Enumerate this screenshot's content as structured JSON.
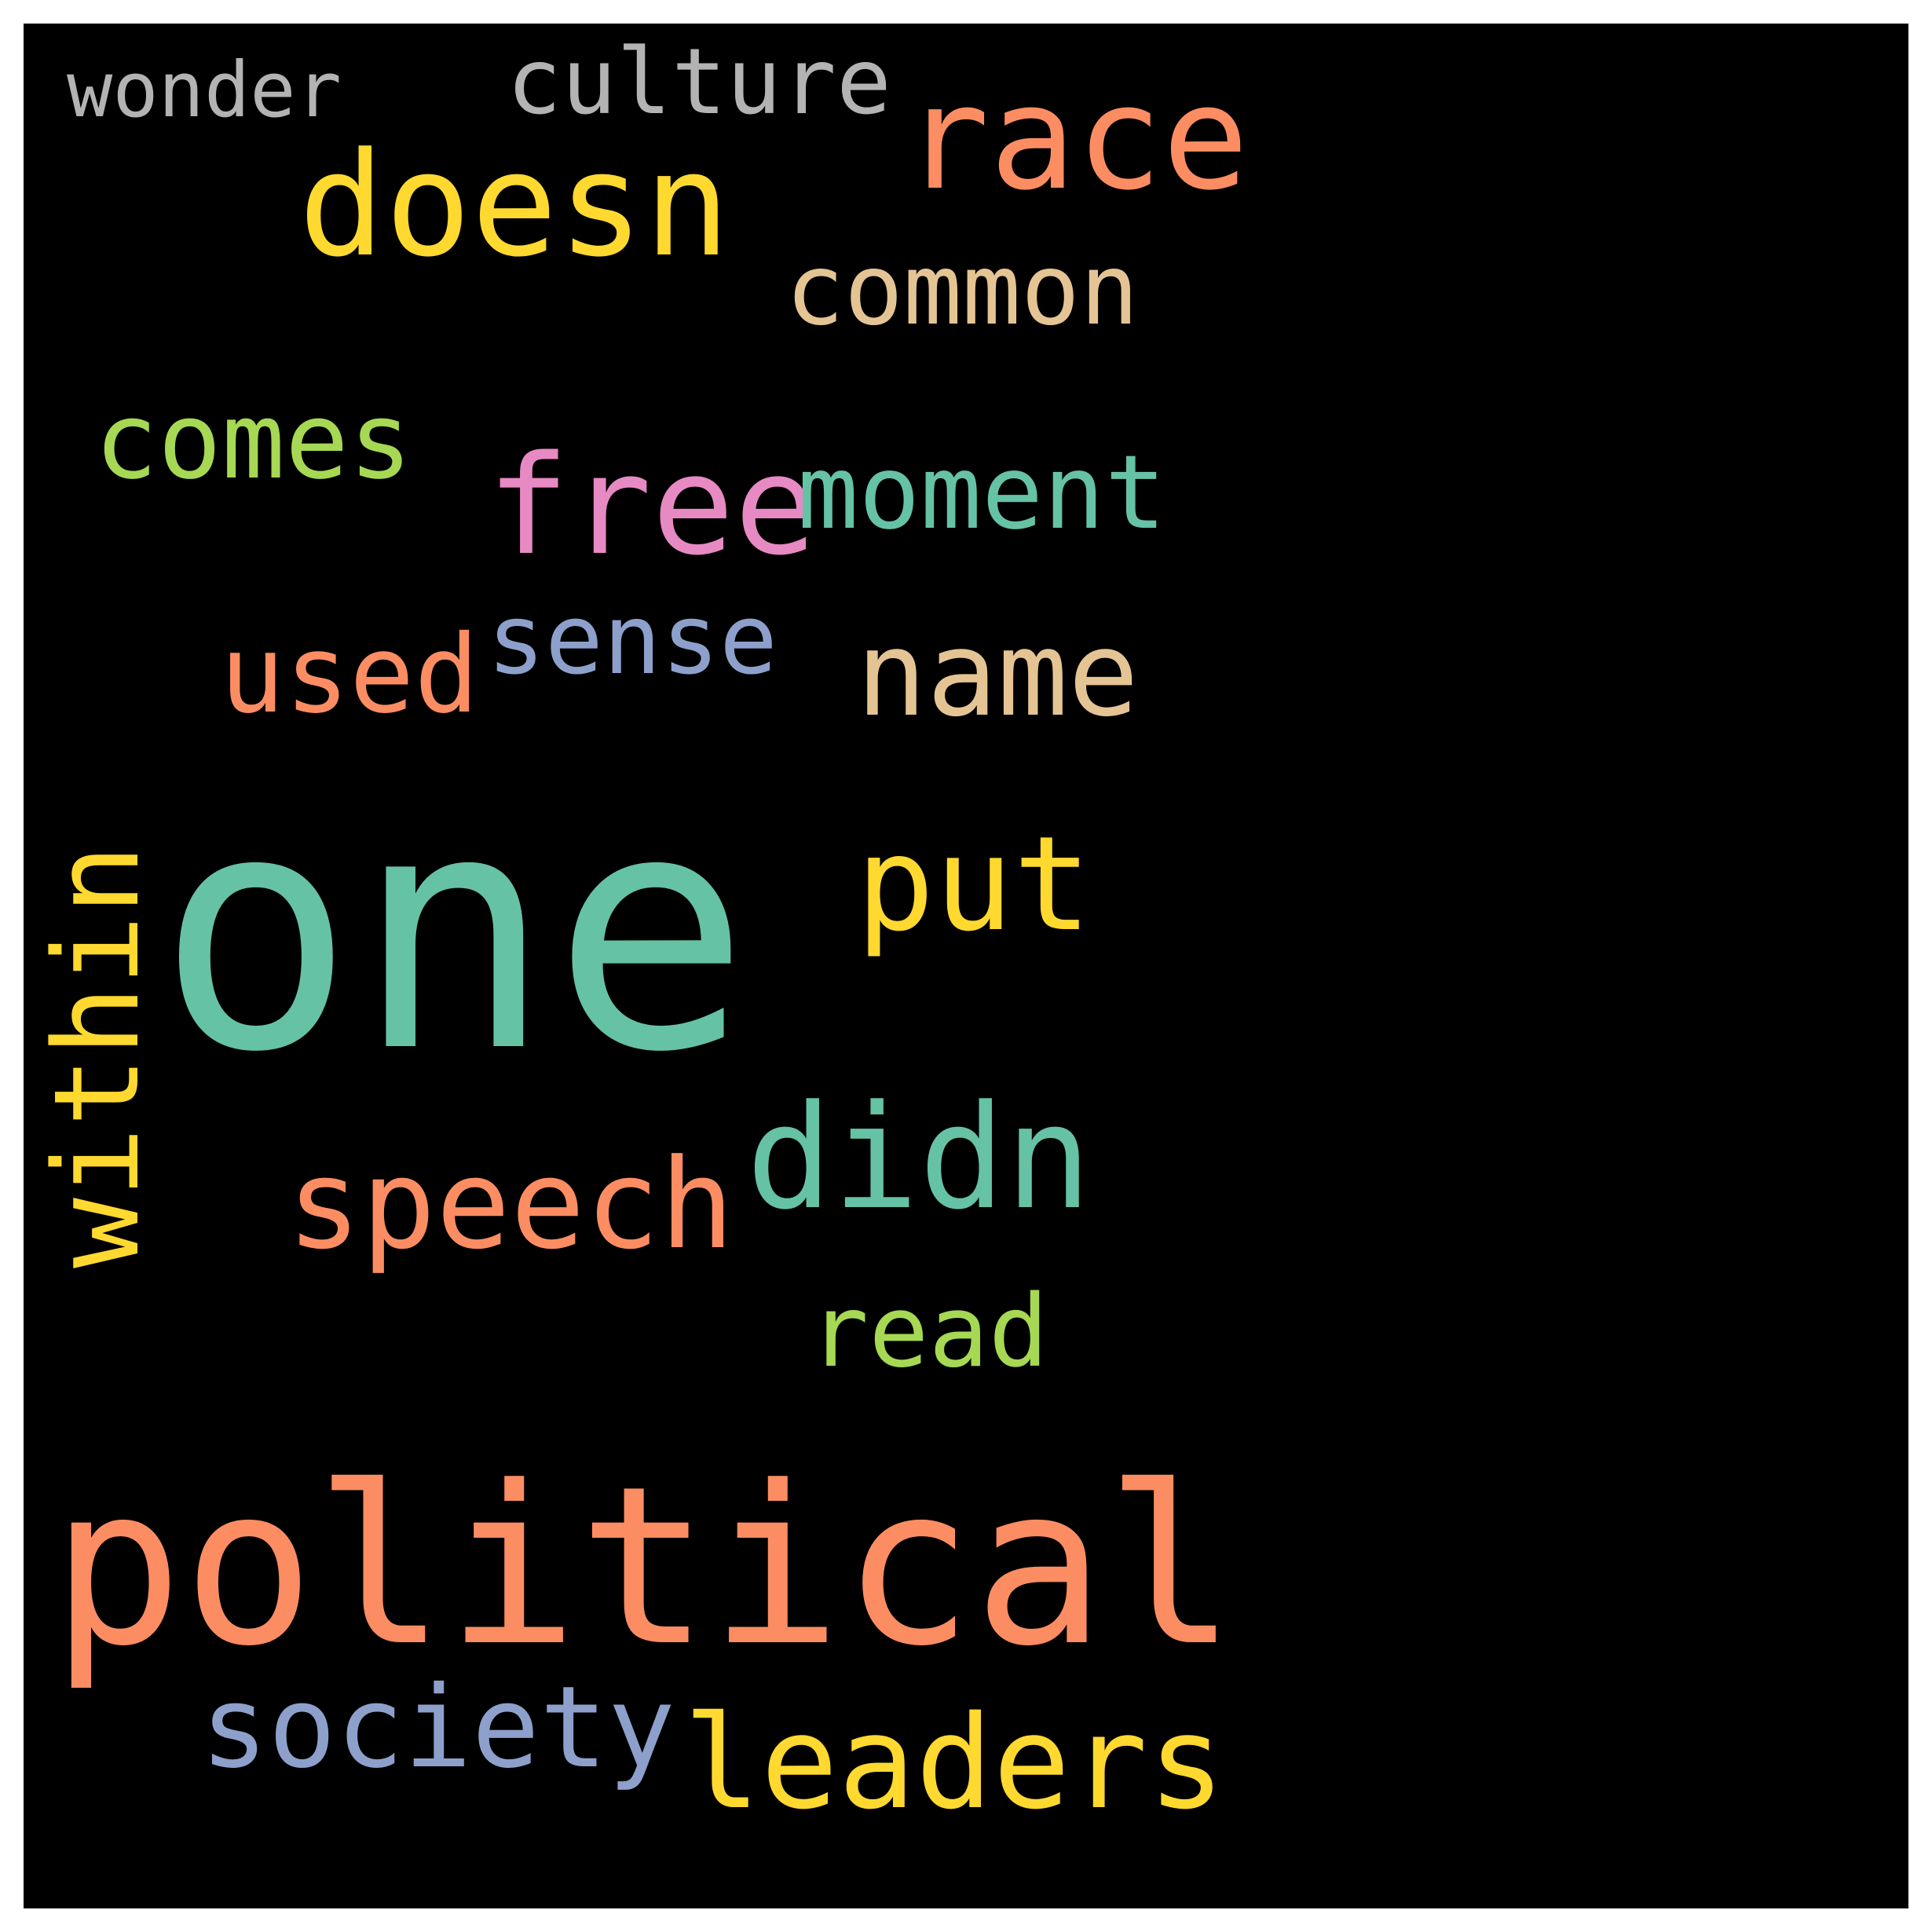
{
  "words": [
    {
      "text": "wonder",
      "color": "#b3b3b3"
    },
    {
      "text": "culture",
      "color": "#b3b3b3"
    },
    {
      "text": "race",
      "color": "#fc8d62"
    },
    {
      "text": "doesn",
      "color": "#ffd92f"
    },
    {
      "text": "common",
      "color": "#e5c494"
    },
    {
      "text": "comes",
      "color": "#a6d854"
    },
    {
      "text": "free",
      "color": "#e78ac3"
    },
    {
      "text": "moment",
      "color": "#66c2a5"
    },
    {
      "text": "sense",
      "color": "#8da0cb"
    },
    {
      "text": "used",
      "color": "#fc8d62"
    },
    {
      "text": "name",
      "color": "#e5c494"
    },
    {
      "text": "one",
      "color": "#66c2a5"
    },
    {
      "text": "put",
      "color": "#ffd92f"
    },
    {
      "text": "within",
      "color": "#ffd92f"
    },
    {
      "text": "didn",
      "color": "#66c2a5"
    },
    {
      "text": "speech",
      "color": "#fc8d62"
    },
    {
      "text": "read",
      "color": "#a6d854"
    },
    {
      "text": "political",
      "color": "#fc8d62"
    },
    {
      "text": "society",
      "color": "#8da0cb"
    },
    {
      "text": "leaders",
      "color": "#ffd92f"
    }
  ]
}
